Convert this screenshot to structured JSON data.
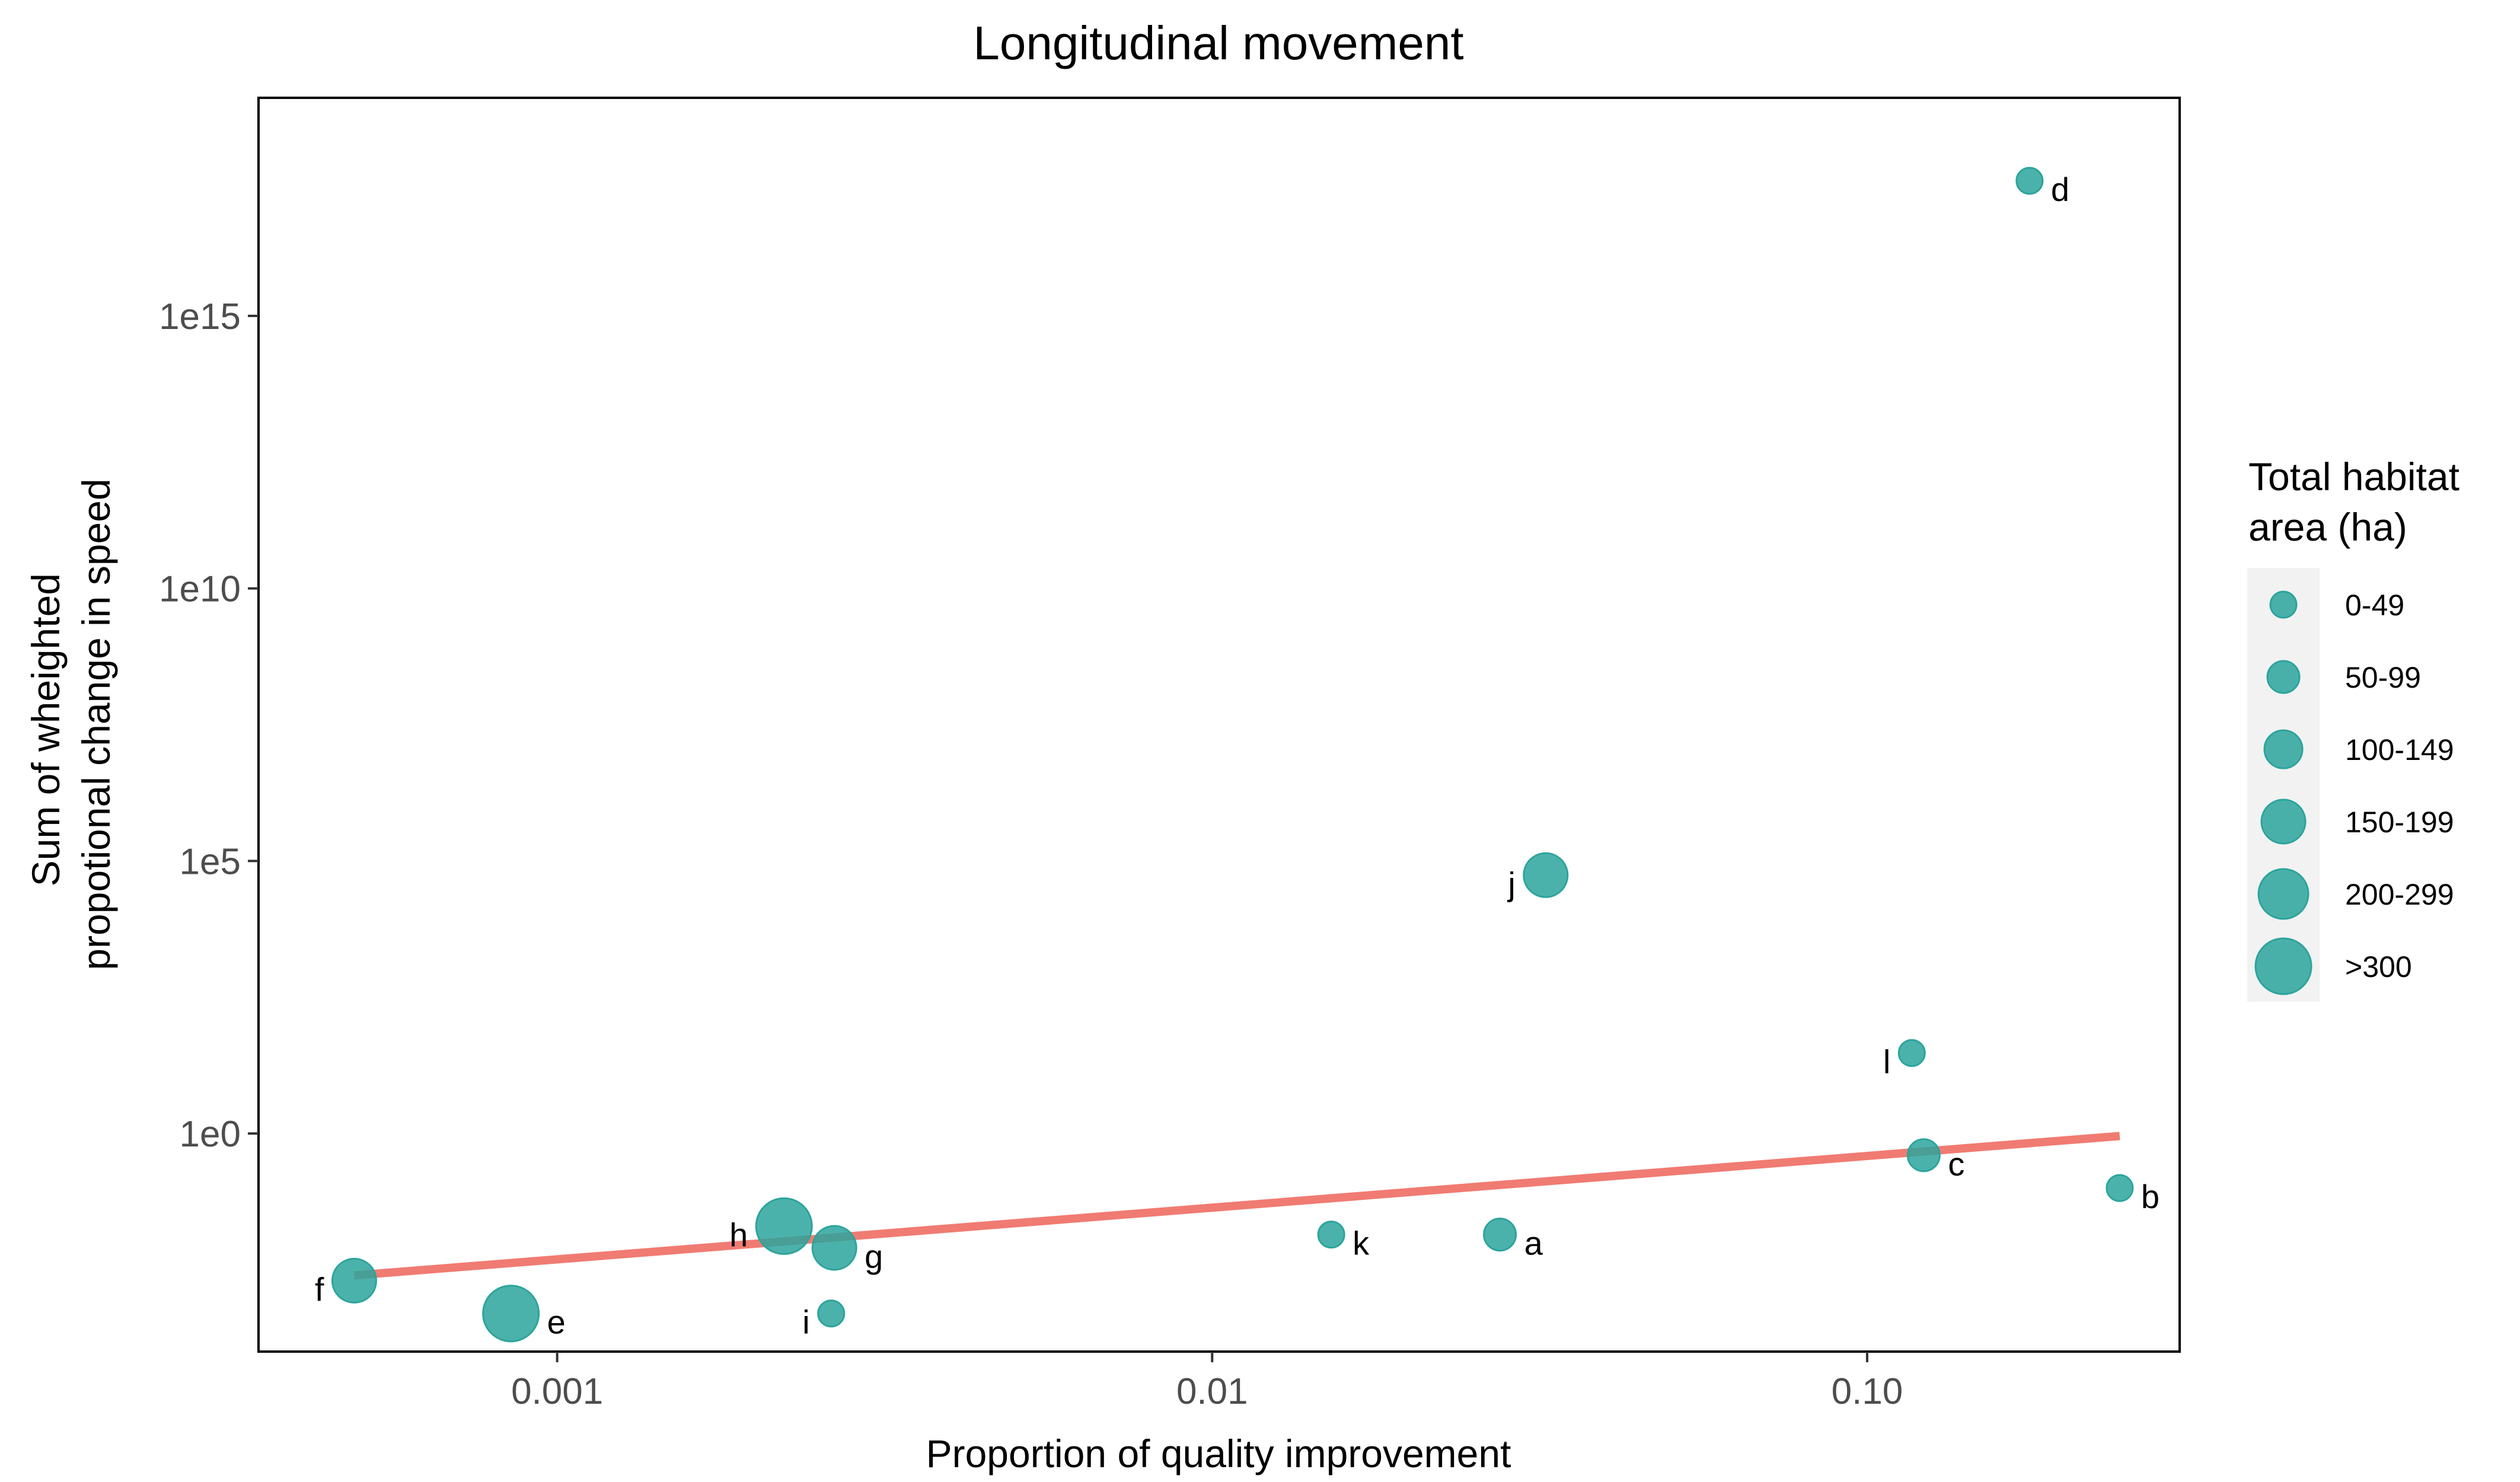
{
  "chart_data": {
    "type": "scatter",
    "title": "Longitudinal movement",
    "xlabel": "Proportion of quality improvement",
    "ylabel_lines": [
      "Sum of wheighted",
      "propotional change in speed"
    ],
    "x_scale": "log10",
    "y_scale": "log10",
    "xlim": [
      0.00035,
      0.3
    ],
    "ylim": [
      0.0001,
      1e+19
    ],
    "x_ticks": [
      {
        "value": 0.001,
        "label": "0.001"
      },
      {
        "value": 0.01,
        "label": "0.01"
      },
      {
        "value": 0.1,
        "label": "0.10"
      }
    ],
    "y_ticks": [
      {
        "value": 1,
        "label": "1e0"
      },
      {
        "value": 100000.0,
        "label": "1e5"
      },
      {
        "value": 10000000000.0,
        "label": "1e10"
      },
      {
        "value": 1000000000000000.0,
        "label": "1e15"
      }
    ],
    "point_color": "#2ca49c",
    "trend_color": "#f07b72",
    "grid": false,
    "points": [
      {
        "label": "a",
        "x": 0.0275,
        "y": 0.014,
        "size_class": "50-99"
      },
      {
        "label": "b",
        "x": 0.243,
        "y": 0.1,
        "size_class": "0-49"
      },
      {
        "label": "c",
        "x": 0.122,
        "y": 0.4,
        "size_class": "50-99"
      },
      {
        "label": "d",
        "x": 0.177,
        "y": 3e+17,
        "size_class": "0-49"
      },
      {
        "label": "e",
        "x": 0.00085,
        "y": 0.0005,
        "size_class": ">300"
      },
      {
        "label": "f",
        "x": 0.00049,
        "y": 0.002,
        "size_class": "150-199"
      },
      {
        "label": "g",
        "x": 0.00265,
        "y": 0.008,
        "size_class": "150-199"
      },
      {
        "label": "h",
        "x": 0.00222,
        "y": 0.02,
        "size_class": ">300"
      },
      {
        "label": "i",
        "x": 0.00262,
        "y": 0.0005,
        "size_class": "0-49"
      },
      {
        "label": "j",
        "x": 0.0323,
        "y": 55000,
        "size_class": "150-199"
      },
      {
        "label": "k",
        "x": 0.0152,
        "y": 0.014,
        "size_class": "0-49"
      },
      {
        "label": "l",
        "x": 0.117,
        "y": 30,
        "size_class": "0-49"
      }
    ],
    "trend_line": {
      "x": [
        0.00049,
        0.243
      ],
      "y": [
        0.0025,
        0.9
      ]
    },
    "legend": {
      "title_lines": [
        "Total habitat",
        "area (ha)"
      ],
      "placement": "right",
      "entries": [
        "0-49",
        "50-99",
        "100-149",
        "150-199",
        "200-299",
        ">300"
      ]
    }
  }
}
